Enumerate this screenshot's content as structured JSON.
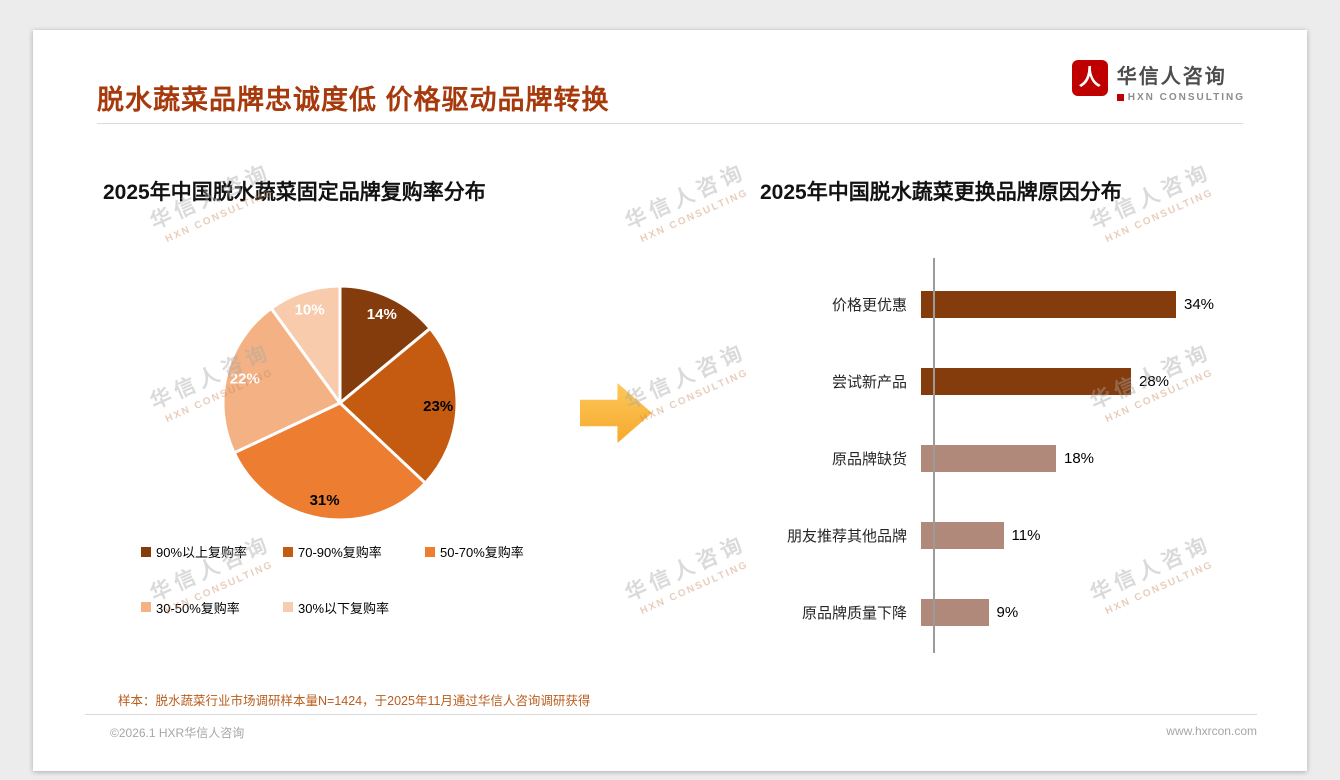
{
  "header": {
    "title": "脱水蔬菜品牌忠诚度低 价格驱动品牌转换",
    "logo_name": "华信人咨询",
    "logo_sub": "HXN CONSULTING",
    "logo_icon_glyph": "人"
  },
  "watermark": {
    "line1": "华信人咨询",
    "line2": "HXN CONSULTING"
  },
  "chart_data": [
    {
      "type": "pie",
      "title": "2025年中国脱水蔬菜固定品牌复购率分布",
      "labels": [
        "90%以上复购率",
        "70-90%复购率",
        "50-70%复购率",
        "30-50%复购率",
        "30%以下复购率"
      ],
      "values": [
        14,
        23,
        31,
        22,
        10
      ],
      "unit": "%",
      "colors": [
        "#843C0C",
        "#C55A11",
        "#ED7D31",
        "#F4B183",
        "#F8CBAD"
      ],
      "label_colors": [
        "#FFFFFF",
        "#000000",
        "#000000",
        "#FFFFFF",
        "#FFFFFF"
      ],
      "start_angle_deg": 0,
      "direction": "clockwise",
      "legend_position": "bottom",
      "legend_rows": [
        [
          0,
          1,
          2
        ],
        [
          3,
          4
        ]
      ]
    },
    {
      "type": "bar",
      "orientation": "horizontal",
      "title": "2025年中国脱水蔬菜更换品牌原因分布",
      "categories": [
        "价格更优惠",
        "尝试新产品",
        "原品牌缺货",
        "朋友推荐其他品牌",
        "原品牌质量下降"
      ],
      "values": [
        34,
        28,
        18,
        11,
        9
      ],
      "value_suffix": "%",
      "bar_colors": [
        "#843C0C",
        "#843C0C",
        "#B0897B",
        "#B0897B",
        "#B0897B"
      ],
      "xlim": [
        0,
        40
      ],
      "gridlines": false,
      "legend_position": "none"
    }
  ],
  "footer": {
    "note": "样本：脱水蔬菜行业市场调研样本量N=1424，于2025年11月通过华信人咨询调研获得",
    "copyright": "©2026.1 HXR华信人咨询",
    "website": "www.hxrcon.com"
  },
  "colors": {
    "title_accent": "#A63A0D",
    "brand_red": "#C00000",
    "arrow_gold": "#F9B43B",
    "note_text": "#BA5D1E",
    "dark_bar": "#843C0C",
    "light_bar": "#B0897B"
  }
}
